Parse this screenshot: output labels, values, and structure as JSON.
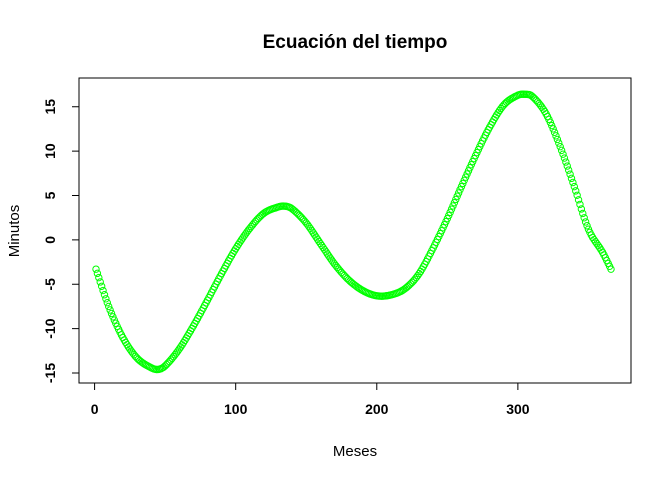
{
  "chart_data": {
    "type": "scatter",
    "title": "Ecuación del tiempo",
    "xlabel": "Meses",
    "ylabel": "Minutos",
    "xlim": [
      1,
      366
    ],
    "ylim": [
      -15,
      17
    ],
    "xticks": [
      0,
      100,
      200,
      300
    ],
    "yticks": [
      -15,
      -10,
      -5,
      0,
      5,
      10,
      15
    ],
    "xtick_labels": [
      "0",
      "100",
      "200",
      "300"
    ],
    "ytick_labels": [
      "-15",
      "-10",
      "-5",
      "0",
      "5",
      "10",
      "15"
    ],
    "grid": false,
    "legend": "none",
    "point_color": "#00ff00",
    "marker": "open-circle",
    "series": [
      {
        "x": [
          1,
          10,
          20,
          30,
          40,
          45,
          50,
          60,
          70,
          80,
          90,
          100,
          110,
          120,
          130,
          135,
          140,
          150,
          160,
          170,
          180,
          190,
          200,
          210,
          220,
          230,
          240,
          250,
          260,
          270,
          280,
          290,
          300,
          305,
          310,
          320,
          330,
          340,
          350,
          360,
          366
        ],
        "y": [
          -3.3,
          -7.5,
          -11.0,
          -13.3,
          -14.4,
          -14.6,
          -14.2,
          -12.3,
          -9.7,
          -6.8,
          -3.8,
          -1.0,
          1.3,
          3.0,
          3.7,
          3.8,
          3.5,
          1.9,
          -0.4,
          -2.7,
          -4.5,
          -5.7,
          -6.3,
          -6.2,
          -5.5,
          -3.8,
          -0.9,
          2.4,
          6.0,
          9.5,
          12.7,
          15.2,
          16.3,
          16.4,
          16.2,
          14.2,
          10.5,
          6.0,
          1.2,
          -1.4,
          -3.3
        ]
      }
    ]
  }
}
